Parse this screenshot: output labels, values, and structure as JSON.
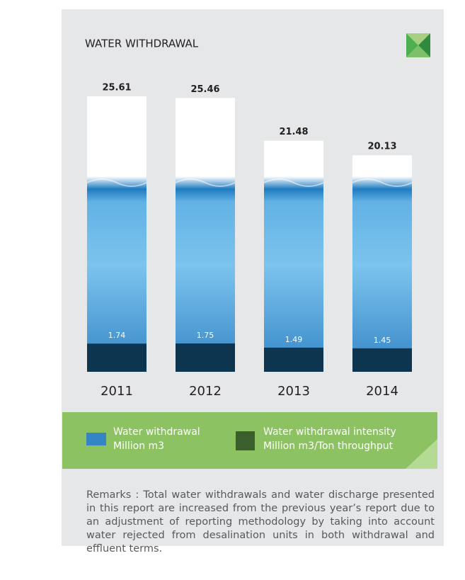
{
  "chart_data": {
    "type": "bar",
    "title": "WATER WITHDRAWAL",
    "categories": [
      "2011",
      "2012",
      "2013",
      "2014"
    ],
    "series": [
      {
        "name": "Water withdrawal",
        "unit": "Million m3",
        "color": "#3f9ad8",
        "values": [
          25.61,
          25.46,
          21.48,
          20.13
        ]
      },
      {
        "name": "Water withdrawal intensity",
        "unit": "Million m3/Ton throughput",
        "color": "#0e3550",
        "values": [
          1.74,
          1.75,
          1.49,
          1.45
        ]
      }
    ]
  },
  "remarks": "Remarks : Total water withdrawals and water discharge presented in this report are increased from the previous year’s report due to an adjustment of reporting methodology by taking into account water rejected from desalination units in both withdrawal and effluent terms."
}
